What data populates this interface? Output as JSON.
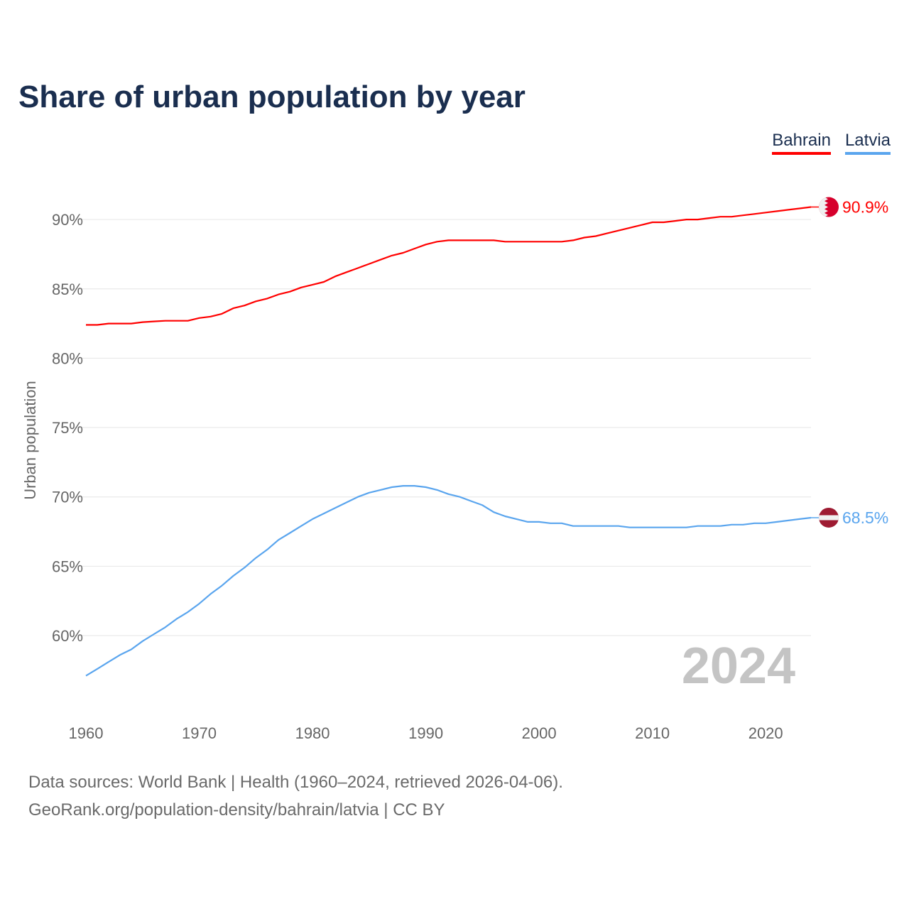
{
  "title": "Share of urban population by year",
  "colors": {
    "Bahrain": "#ff0000",
    "Latvia": "#5aa5ee",
    "flag_bahrain": "#d6002c",
    "flag_latvia": "#9e1b32"
  },
  "footer": {
    "line1": "Data sources: World Bank | Health (1960–2024, retrieved 2026-04-06).",
    "line2": "GeoRank.org/population-density/bahrain/latvia | CC BY"
  },
  "chart_data": {
    "type": "line",
    "title": "Share of urban population by year",
    "xlabel": "",
    "ylabel": "Urban population",
    "xlim": [
      1960,
      2024
    ],
    "ylim": [
      55,
      92.5
    ],
    "yticks": [
      60,
      65,
      70,
      75,
      80,
      85,
      90
    ],
    "ytick_labels": [
      "60%",
      "65%",
      "70%",
      "75%",
      "80%",
      "85%",
      "90%"
    ],
    "xticks": [
      1960,
      1970,
      1980,
      1990,
      2000,
      2010,
      2020
    ],
    "xtick_labels": [
      "1960",
      "1970",
      "1980",
      "1990",
      "2000",
      "2010",
      "2020"
    ],
    "grid": true,
    "legend": "top-right",
    "year_label": "2024",
    "x_start": 1960,
    "series": [
      {
        "name": "Bahrain",
        "end_label": "90.9%",
        "flag_icon": "bahrain-flag-icon",
        "values": [
          82.4,
          82.4,
          82.5,
          82.5,
          82.5,
          82.6,
          82.65,
          82.7,
          82.7,
          82.7,
          82.9,
          83.0,
          83.2,
          83.6,
          83.8,
          84.1,
          84.3,
          84.6,
          84.8,
          85.1,
          85.3,
          85.5,
          85.9,
          86.2,
          86.5,
          86.8,
          87.1,
          87.4,
          87.6,
          87.9,
          88.2,
          88.4,
          88.5,
          88.5,
          88.5,
          88.5,
          88.5,
          88.4,
          88.4,
          88.4,
          88.4,
          88.4,
          88.4,
          88.5,
          88.7,
          88.8,
          89.0,
          89.2,
          89.4,
          89.6,
          89.8,
          89.8,
          89.9,
          90.0,
          90.0,
          90.1,
          90.2,
          90.2,
          90.3,
          90.4,
          90.5,
          90.6,
          90.7,
          90.8,
          90.9
        ]
      },
      {
        "name": "Latvia",
        "end_label": "68.5%",
        "flag_icon": "latvia-flag-icon",
        "values": [
          57.1,
          57.6,
          58.1,
          58.6,
          59.0,
          59.6,
          60.1,
          60.6,
          61.2,
          61.7,
          62.3,
          63.0,
          63.6,
          64.3,
          64.9,
          65.6,
          66.2,
          66.9,
          67.4,
          67.9,
          68.4,
          68.8,
          69.2,
          69.6,
          70.0,
          70.3,
          70.5,
          70.7,
          70.8,
          70.8,
          70.7,
          70.5,
          70.2,
          70.0,
          69.7,
          69.4,
          68.9,
          68.6,
          68.4,
          68.2,
          68.2,
          68.1,
          68.1,
          67.9,
          67.9,
          67.9,
          67.9,
          67.9,
          67.8,
          67.8,
          67.8,
          67.8,
          67.8,
          67.8,
          67.9,
          67.9,
          67.9,
          68.0,
          68.0,
          68.1,
          68.1,
          68.2,
          68.3,
          68.4,
          68.5
        ]
      }
    ]
  }
}
